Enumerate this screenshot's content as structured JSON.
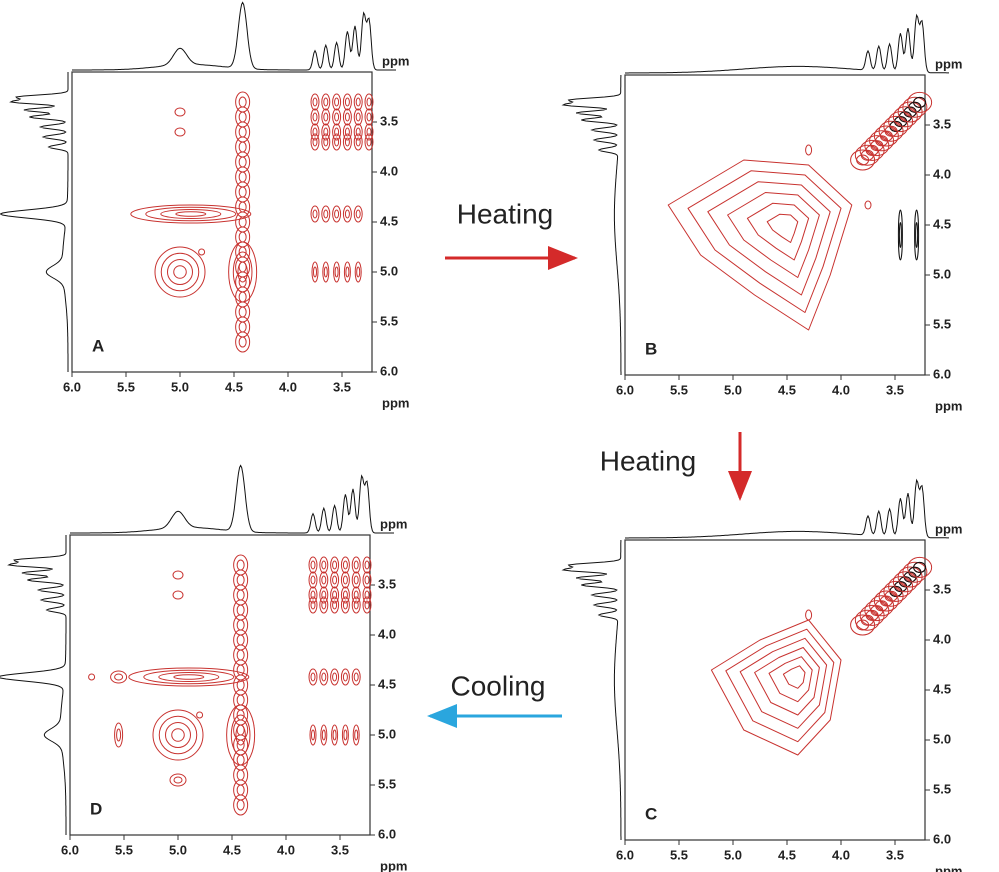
{
  "panels": [
    {
      "label": "A",
      "x_unit": "ppm",
      "y_unit": "ppm",
      "xticks": [
        "6.0",
        "5.5",
        "5.0",
        "4.5",
        "4.0",
        "3.5"
      ],
      "yticks": [
        "3.5",
        "4.0",
        "4.5",
        "5.0",
        "5.5",
        "6.0"
      ]
    },
    {
      "label": "B",
      "x_unit": "ppm",
      "y_unit": "ppm",
      "xticks": [
        "6.0",
        "5.5",
        "5.0",
        "4.5",
        "4.0",
        "3.5"
      ],
      "yticks": [
        "3.5",
        "4.0",
        "4.5",
        "5.0",
        "5.5",
        "6.0"
      ]
    },
    {
      "label": "C",
      "x_unit": "ppm",
      "y_unit": "ppm",
      "xticks": [
        "6.0",
        "5.5",
        "5.0",
        "4.5",
        "4.0",
        "3.5"
      ],
      "yticks": [
        "3.5",
        "4.0",
        "4.5",
        "5.0",
        "5.5",
        "6.0"
      ]
    },
    {
      "label": "D",
      "x_unit": "ppm",
      "y_unit": "ppm",
      "xticks": [
        "6.0",
        "5.5",
        "5.0",
        "4.5",
        "4.0",
        "3.5"
      ],
      "yticks": [
        "3.5",
        "4.0",
        "4.5",
        "5.0",
        "5.5",
        "6.0"
      ]
    }
  ],
  "arrows": [
    {
      "label": "Heating"
    },
    {
      "label": "Heating"
    },
    {
      "label": "Cooling"
    }
  ]
}
